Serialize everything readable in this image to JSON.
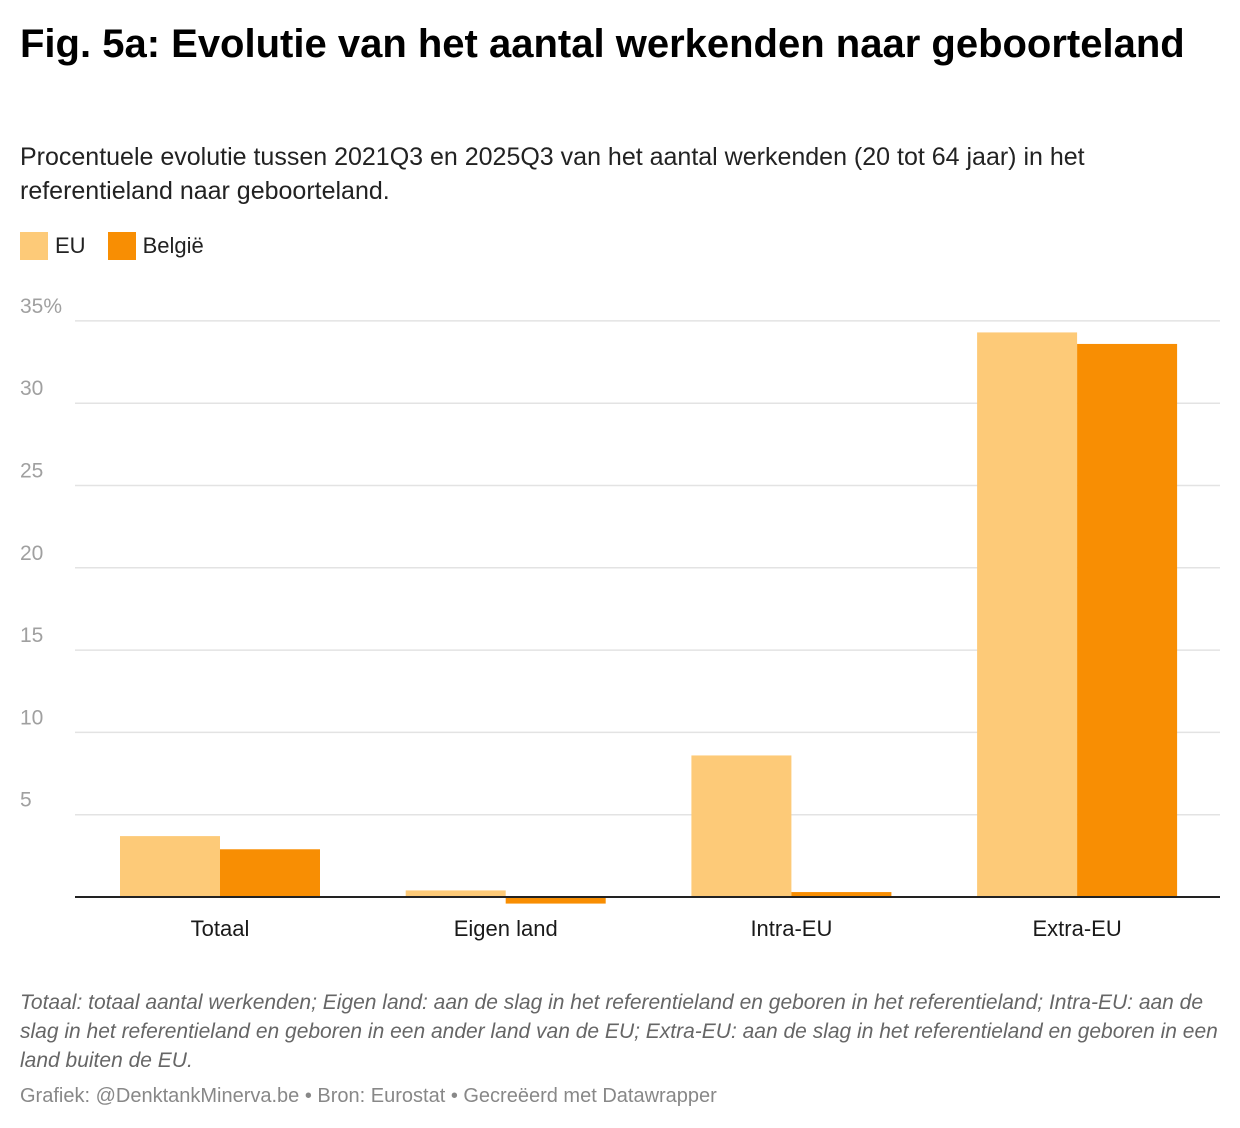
{
  "title": "Fig. 5a: Evolutie van het aantal werkenden naar geboorteland",
  "subtitle": "Procentuele evolutie tussen 2021Q3 en 2025Q3 van het aantal werkenden (20 tot 64 jaar) in het referentieland naar geboorteland.",
  "notes": "Totaal: totaal aantal werkenden; Eigen land: aan de slag in het referentieland en geboren in het referentieland; Intra-EU: aan de slag in het referentieland en geboren in een ander land van de EU; Extra-EU: aan de slag in het referentieland en geboren in een land buiten de EU.",
  "credits": "Grafiek: @DenktankMinerva.be • Bron: Eurostat • Gecreëerd met Datawrapper",
  "chart_data": {
    "type": "bar",
    "categories": [
      "Totaal",
      "Eigen land",
      "Intra-EU",
      "Extra-EU"
    ],
    "series": [
      {
        "name": "EU",
        "color": "#fdca78",
        "values": [
          3.7,
          0.4,
          8.6,
          34.3
        ]
      },
      {
        "name": "België",
        "color": "#f88e03",
        "values": [
          2.9,
          -0.4,
          0.3,
          33.6
        ]
      }
    ],
    "yticks": [
      {
        "value": 5,
        "label": "5"
      },
      {
        "value": 10,
        "label": "10"
      },
      {
        "value": 15,
        "label": "15"
      },
      {
        "value": 20,
        "label": "20"
      },
      {
        "value": 25,
        "label": "25"
      },
      {
        "value": 30,
        "label": "30"
      },
      {
        "value": 35,
        "label": "35%"
      }
    ],
    "ylim": [
      0,
      35
    ],
    "grid": true,
    "legend_position": "top-left"
  }
}
